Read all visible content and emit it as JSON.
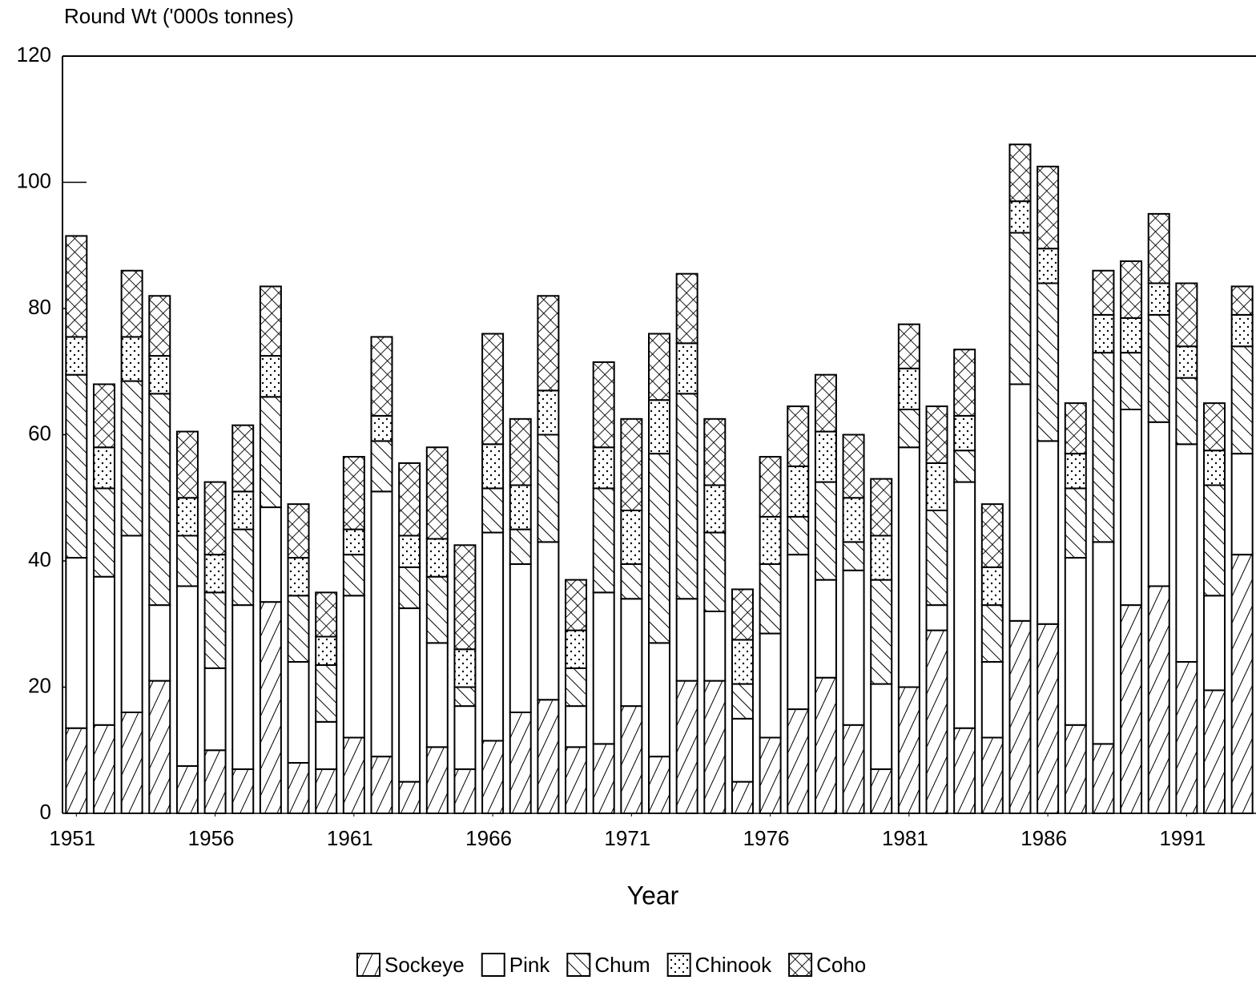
{
  "chart_data": {
    "type": "bar",
    "stacked": true,
    "y_label": "Round Wt ('000s tonnes)",
    "x_label": "Year",
    "x": [
      1951,
      1952,
      1953,
      1954,
      1955,
      1956,
      1957,
      1958,
      1959,
      1960,
      1961,
      1962,
      1963,
      1964,
      1965,
      1966,
      1967,
      1968,
      1969,
      1970,
      1971,
      1972,
      1973,
      1974,
      1975,
      1976,
      1977,
      1978,
      1979,
      1980,
      1981,
      1982,
      1983,
      1984,
      1985,
      1986,
      1987,
      1988,
      1989,
      1990,
      1991,
      1992,
      1993
    ],
    "xlim": [
      1950.5,
      1993.5
    ],
    "xticks": [
      1951,
      1956,
      1961,
      1966,
      1971,
      1976,
      1981,
      1986,
      1991
    ],
    "ylim": [
      0,
      120
    ],
    "yticks": [
      0,
      20,
      40,
      60,
      80,
      100,
      120
    ],
    "series": [
      {
        "name": "Sockeye",
        "values": [
          13.5,
          14,
          16,
          21,
          7.5,
          10,
          7,
          33.5,
          8,
          7,
          12,
          9,
          5,
          10.5,
          7,
          11.5,
          16,
          18,
          10.5,
          11,
          17,
          9,
          21,
          21,
          5,
          12,
          16.5,
          21.5,
          14,
          7,
          20,
          29,
          13.5,
          12,
          30.5,
          30,
          14,
          11,
          33,
          36,
          24,
          19.5,
          41
        ]
      },
      {
        "name": "Pink",
        "values": [
          27,
          23.5,
          28,
          12,
          28.5,
          13,
          26,
          15,
          16,
          7.5,
          22.5,
          42,
          27.5,
          16.5,
          10,
          33,
          23.5,
          25,
          6.5,
          24,
          17,
          18,
          13,
          11,
          10,
          16.5,
          24.5,
          15.5,
          24.5,
          13.5,
          38,
          4,
          39,
          12,
          37.5,
          29,
          26.5,
          32,
          31,
          26,
          34.5,
          15,
          16
        ]
      },
      {
        "name": "Chum",
        "values": [
          29,
          14,
          24.5,
          33.5,
          8,
          12,
          12,
          17.5,
          10.5,
          9,
          6.5,
          8,
          6.5,
          10.5,
          3,
          7,
          5.5,
          17,
          6,
          16.5,
          5.5,
          30,
          32.5,
          12.5,
          5.5,
          11,
          6,
          15.5,
          4.5,
          16.5,
          6,
          15,
          5,
          9,
          24,
          25,
          11,
          30,
          9,
          17,
          10.5,
          17.5,
          17
        ]
      },
      {
        "name": "Chinook",
        "values": [
          6,
          6.5,
          7,
          6,
          6,
          6,
          6,
          6.5,
          6,
          4.5,
          4,
          4,
          5,
          6,
          6,
          7,
          7,
          7,
          6,
          6.5,
          8.5,
          8.5,
          8,
          7.5,
          7,
          7.5,
          8,
          8,
          7,
          7,
          6.5,
          7.5,
          5.5,
          6,
          5,
          5.5,
          5.5,
          6,
          5.5,
          5,
          5,
          5.5,
          5
        ]
      },
      {
        "name": "Coho",
        "values": [
          16,
          10,
          10.5,
          9.5,
          10.5,
          11.5,
          10.5,
          11,
          8.5,
          7,
          11.5,
          12.5,
          11.5,
          14.5,
          16.5,
          17.5,
          10.5,
          15,
          8,
          13.5,
          14.5,
          10.5,
          11,
          10.5,
          8,
          9.5,
          9.5,
          9,
          10,
          9,
          7,
          9,
          10.5,
          10,
          9,
          13,
          8,
          7,
          9,
          11,
          10,
          7.5,
          4.5
        ]
      }
    ]
  }
}
